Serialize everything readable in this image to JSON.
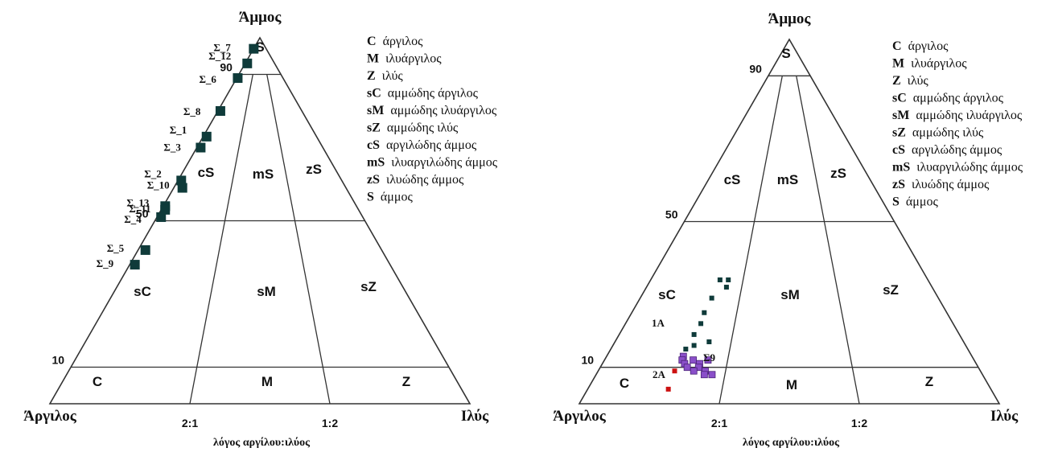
{
  "chart_data": [
    {
      "type": "scatter",
      "chart_style": "ternary-classification",
      "apex_labels": {
        "top": "Άμμος",
        "left": "Άργιλος",
        "right": "Ιλύς"
      },
      "xlabel": "λόγος αργίλου:ιλύος",
      "ratio_ticks": [
        "2:1",
        "1:2"
      ],
      "sand_ticks": [
        "10",
        "50",
        "90"
      ],
      "legend": [
        {
          "code": "C",
          "text": "άργιλος"
        },
        {
          "code": "M",
          "text": "ιλυάργιλος"
        },
        {
          "code": "Z",
          "text": "ιλύς"
        },
        {
          "code": "sC",
          "text": "αμμώδης άργιλος"
        },
        {
          "code": "sM",
          "text": "αμμώδης ιλυάργιλος"
        },
        {
          "code": "sZ",
          "text": "αμμώδης ιλύς"
        },
        {
          "code": "cS",
          "text": "αργιλώδης άμμος"
        },
        {
          "code": "mS",
          "text": "ιλυαργιλώδης άμμος"
        },
        {
          "code": "zS",
          "text": "ιλυώδης άμμος"
        },
        {
          "code": "S",
          "text": "άμμος"
        }
      ],
      "legend_position": "top-right",
      "region_labels": [
        "S",
        "cS",
        "mS",
        "zS",
        "sC",
        "sM",
        "sZ",
        "C",
        "M",
        "Z"
      ],
      "marker_color": "#0f3b3a",
      "series": [
        {
          "points": [
            {
              "label": "Σ_7",
              "sand": 97,
              "clay_fraction": 0.99
            },
            {
              "label": "Σ_12",
              "sand": 93,
              "clay_fraction": 0.93
            },
            {
              "label": "Σ_6",
              "sand": 89,
              "clay_fraction": 0.98
            },
            {
              "label": "Σ_8",
              "sand": 80,
              "clay_fraction": 0.97
            },
            {
              "label": "Σ_1",
              "sand": 73,
              "clay_fraction": 0.97
            },
            {
              "label": "Σ_3",
              "sand": 70,
              "clay_fraction": 0.97
            },
            {
              "label": "Σ_2",
              "sand": 61,
              "clay_fraction": 0.98
            },
            {
              "label": "Σ_10",
              "sand": 59,
              "clay_fraction": 0.95
            },
            {
              "label": "Σ_13",
              "sand": 54,
              "clay_fraction": 0.99
            },
            {
              "label": "Σ_11",
              "sand": 53,
              "clay_fraction": 0.98
            },
            {
              "label": "Σ_4",
              "sand": 51,
              "clay_fraction": 0.98
            },
            {
              "label": "Σ_5",
              "sand": 42,
              "clay_fraction": 0.97
            },
            {
              "label": "Σ_9",
              "sand": 38,
              "clay_fraction": 0.98
            }
          ]
        }
      ]
    },
    {
      "type": "scatter",
      "chart_style": "ternary-classification",
      "apex_labels": {
        "top": "Άμμος",
        "left": "Άργιλος",
        "right": "Ιλύς"
      },
      "xlabel": "λόγος αργίλου:ιλύος",
      "ratio_ticks": [
        "2:1",
        "1:2"
      ],
      "sand_ticks": [
        "10",
        "50",
        "90"
      ],
      "legend": [
        {
          "code": "C",
          "text": "άργιλος"
        },
        {
          "code": "M",
          "text": "ιλυάργιλος"
        },
        {
          "code": "Z",
          "text": "ιλύς"
        },
        {
          "code": "sC",
          "text": "αμμώδης άργιλος"
        },
        {
          "code": "sM",
          "text": "αμμώδης ιλυάργιλος"
        },
        {
          "code": "sZ",
          "text": "αμμώδης ιλύς"
        },
        {
          "code": "cS",
          "text": "αργιλώδης άμμος"
        },
        {
          "code": "mS",
          "text": "ιλυαργιλώδης άμμος"
        },
        {
          "code": "zS",
          "text": "ιλυώδης άμμος"
        },
        {
          "code": "S",
          "text": "άμμος"
        }
      ],
      "legend_position": "top-right",
      "region_labels": [
        "S",
        "cS",
        "mS",
        "zS",
        "sC",
        "sM",
        "sZ",
        "C",
        "M",
        "Z"
      ],
      "annotations": [
        "1A",
        "2A",
        "Σ9"
      ],
      "series": [
        {
          "color": "#0f3b3a",
          "points": [
            {
              "sand": 34,
              "clay_fraction": 0.75
            },
            {
              "sand": 34,
              "clay_fraction": 0.72
            },
            {
              "sand": 32,
              "clay_fraction": 0.72
            },
            {
              "sand": 29,
              "clay_fraction": 0.76
            },
            {
              "sand": 25,
              "clay_fraction": 0.77
            },
            {
              "sand": 22,
              "clay_fraction": 0.77
            },
            {
              "sand": 19,
              "clay_fraction": 0.78
            },
            {
              "sand": 17,
              "clay_fraction": 0.73
            },
            {
              "sand": 16,
              "clay_fraction": 0.77
            },
            {
              "sand": 15,
              "clay_fraction": 0.79
            }
          ]
        },
        {
          "color": "#8a4fc9",
          "points": [
            {
              "sand": 13,
              "clay_fraction": 0.79
            },
            {
              "sand": 12,
              "clay_fraction": 0.79
            },
            {
              "sand": 12,
              "clay_fraction": 0.76
            },
            {
              "sand": 11,
              "clay_fraction": 0.78
            },
            {
              "sand": 11,
              "clay_fraction": 0.74
            },
            {
              "sand": 10,
              "clay_fraction": 0.77
            },
            {
              "sand": 10,
              "clay_fraction": 0.74
            },
            {
              "sand": 9,
              "clay_fraction": 0.75
            },
            {
              "sand": 9,
              "clay_fraction": 0.72
            },
            {
              "sand": 8,
              "clay_fraction": 0.72
            },
            {
              "sand": 8,
              "clay_fraction": 0.7
            },
            {
              "sand": 12,
              "clay_fraction": 0.72
            }
          ]
        },
        {
          "color": "#cc1111",
          "points": [
            {
              "sand": 9,
              "clay_fraction": 0.8
            },
            {
              "sand": 4,
              "clay_fraction": 0.8
            }
          ]
        }
      ]
    }
  ]
}
